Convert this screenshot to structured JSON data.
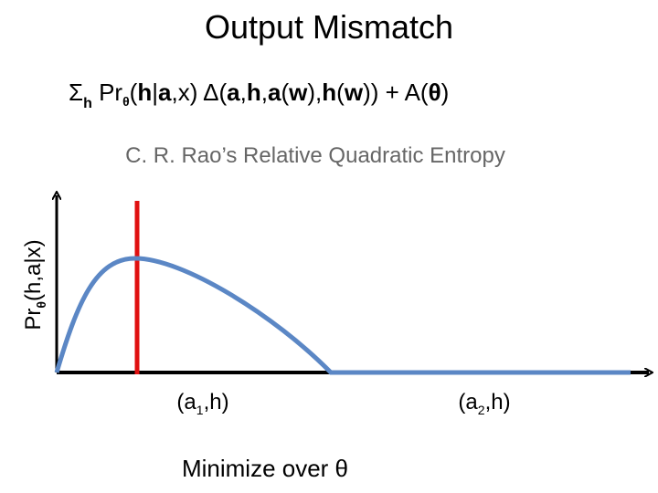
{
  "title": "Output Mismatch",
  "formula": [
    "Σ",
    "h",
    " Pr",
    "θ",
    "(",
    "h",
    "|",
    "a",
    ",x)  Δ(",
    "a",
    ",",
    "h",
    ",",
    "a",
    "(",
    "w",
    "),",
    "h",
    "(",
    "w",
    ")) + A(",
    "θ",
    ")"
  ],
  "subtitle": "C. R. Rao’s Relative Quadratic Entropy",
  "y_axis_label": [
    "Pr",
    "θ",
    "(h,a|x)"
  ],
  "x_labels": [
    [
      "(a",
      "1",
      ",h)"
    ],
    [
      "(a",
      "2",
      ",h)"
    ]
  ],
  "footer": "Minimize over θ"
}
